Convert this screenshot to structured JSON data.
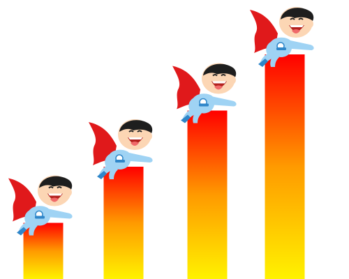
{
  "chart_data": {
    "type": "bar",
    "title": "",
    "xlabel": "",
    "ylabel": "",
    "values": [
      1,
      2,
      3,
      4
    ],
    "ylim": [
      0,
      4
    ],
    "grid": false,
    "legend": "none",
    "bar_gradient": {
      "top": "#ff0000",
      "middle": "#ff9a00",
      "bottom": "#fff200"
    },
    "mascot_icon": "flying-superhero-icon"
  },
  "colors": {
    "background": "#ffffff",
    "cape": "#e0191b",
    "suit": "#9fd3f4",
    "suit_dark": "#2f86c9",
    "skin": "#fcd6b4",
    "hair": "#1e1e1e",
    "mouth": "#b3211e",
    "tongue": "#f06a6a"
  }
}
